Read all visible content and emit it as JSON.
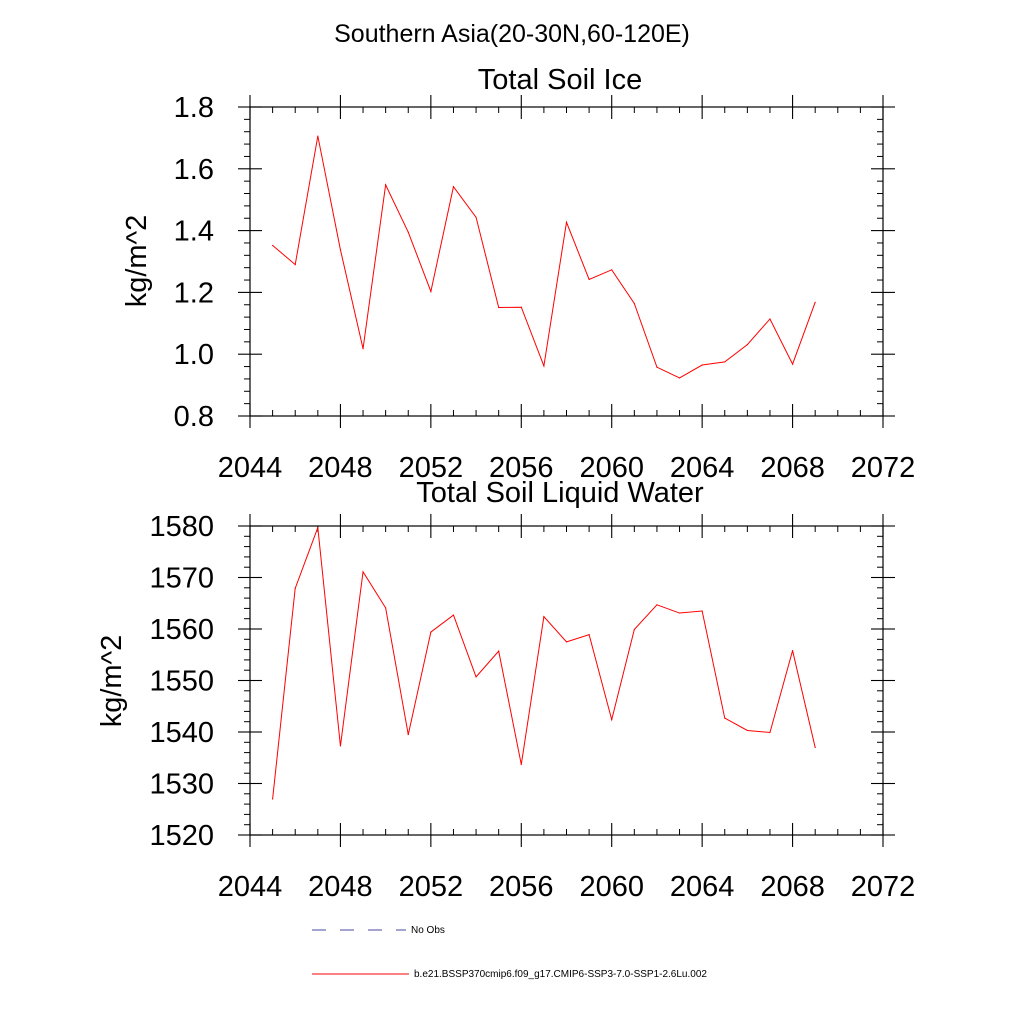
{
  "suptitle": "Southern Asia(20-30N,60-120E)",
  "colors": {
    "series": "#ff0000",
    "obs": "#4a4aa6",
    "axis": "#000000"
  },
  "legend": {
    "obs_label": "No Obs",
    "series_label": "b.e21.BSSP370cmip6.f09_g17.CMIP6-SSP3-7.0-SSP1-2.6Lu.002"
  },
  "chart_data": [
    {
      "type": "line",
      "title": "Total Soil Ice",
      "xlabel": "",
      "ylabel": "kg/m^2",
      "xlim": [
        2044,
        2072
      ],
      "ylim": [
        0.8,
        1.8
      ],
      "xticks": [
        2044,
        2048,
        2052,
        2056,
        2060,
        2064,
        2068,
        2072
      ],
      "xtick_labels": [
        "2044",
        "2048",
        "2052",
        "2056",
        "2060",
        "2064",
        "2068",
        "2072"
      ],
      "yticks": [
        0.8,
        1.0,
        1.2,
        1.4,
        1.6,
        1.8
      ],
      "ytick_labels": [
        "0.8",
        "1.0",
        "1.2",
        "1.4",
        "1.6",
        "1.8"
      ],
      "x": [
        2045,
        2046,
        2047,
        2048,
        2049,
        2050,
        2051,
        2052,
        2053,
        2054,
        2055,
        2056,
        2057,
        2058,
        2059,
        2060,
        2061,
        2062,
        2063,
        2064,
        2065,
        2066,
        2067,
        2068,
        2069
      ],
      "series": [
        {
          "name": "b.e21.BSSP370cmip6.f09_g17.CMIP6-SSP3-7.0-SSP1-2.6Lu.002",
          "values": [
            1.352,
            1.29,
            1.706,
            1.338,
            1.018,
            1.548,
            1.395,
            1.203,
            1.542,
            1.443,
            1.151,
            1.152,
            0.962,
            1.427,
            1.242,
            1.273,
            1.164,
            0.958,
            0.923,
            0.965,
            0.975,
            1.031,
            1.114,
            0.968,
            1.168
          ]
        }
      ]
    },
    {
      "type": "line",
      "title": "Total Soil Liquid Water",
      "xlabel": "",
      "ylabel": "kg/m^2",
      "xlim": [
        2044,
        2072
      ],
      "ylim": [
        1520,
        1580
      ],
      "xticks": [
        2044,
        2048,
        2052,
        2056,
        2060,
        2064,
        2068,
        2072
      ],
      "xtick_labels": [
        "2044",
        "2048",
        "2052",
        "2056",
        "2060",
        "2064",
        "2068",
        "2072"
      ],
      "yticks": [
        1520,
        1530,
        1540,
        1550,
        1560,
        1570,
        1580
      ],
      "ytick_labels": [
        "1520",
        "1530",
        "1540",
        "1550",
        "1560",
        "1570",
        "1580"
      ],
      "x": [
        2045,
        2046,
        2047,
        2048,
        2049,
        2050,
        2051,
        2052,
        2053,
        2054,
        2055,
        2056,
        2057,
        2058,
        2059,
        2060,
        2061,
        2062,
        2063,
        2064,
        2065,
        2066,
        2067,
        2068,
        2069
      ],
      "series": [
        {
          "name": "b.e21.BSSP370cmip6.f09_g17.CMIP6-SSP3-7.0-SSP1-2.6Lu.002",
          "values": [
            1527.0,
            1567.9,
            1579.7,
            1537.3,
            1571.1,
            1564.1,
            1539.5,
            1559.4,
            1562.7,
            1550.7,
            1555.7,
            1533.7,
            1562.4,
            1557.5,
            1558.9,
            1542.4,
            1559.9,
            1564.7,
            1563.1,
            1563.5,
            1542.7,
            1540.3,
            1539.9,
            1555.8,
            1537.0
          ]
        }
      ]
    }
  ]
}
